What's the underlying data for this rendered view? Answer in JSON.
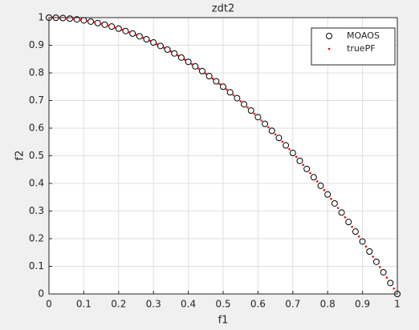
{
  "chart_data": {
    "type": "scatter",
    "title": "zdt2",
    "x_label": "f1",
    "y_label": "f2",
    "xlim": [
      0,
      1
    ],
    "ylim": [
      0,
      1
    ],
    "xticks": [
      0,
      0.1,
      0.2,
      0.3,
      0.4,
      0.5,
      0.6,
      0.7,
      0.8,
      0.9,
      1
    ],
    "yticks": [
      0,
      0.1,
      0.2,
      0.3,
      0.4,
      0.5,
      0.6,
      0.7,
      0.8,
      0.9,
      1
    ],
    "grid": true,
    "legend": "northeast",
    "series": [
      {
        "name": "MOAOS",
        "color": "#000000",
        "marker": "circle",
        "x": [
          0,
          0.02,
          0.04,
          0.06,
          0.08,
          0.1,
          0.12,
          0.14,
          0.16,
          0.18,
          0.2,
          0.22,
          0.24,
          0.26,
          0.28,
          0.3,
          0.32,
          0.34,
          0.36,
          0.38,
          0.4,
          0.42,
          0.44,
          0.46,
          0.48,
          0.5,
          0.52,
          0.54,
          0.56,
          0.58,
          0.6,
          0.62,
          0.64,
          0.66,
          0.68,
          0.7,
          0.72,
          0.74,
          0.76,
          0.78,
          0.8,
          0.82,
          0.84,
          0.86,
          0.88,
          0.9,
          0.92,
          0.94,
          0.96,
          0.98,
          1
        ],
        "values": [
          1,
          0.9996,
          0.9984,
          0.9964,
          0.9936,
          0.99,
          0.9856,
          0.9804,
          0.9744,
          0.9676,
          0.96,
          0.9516,
          0.9424,
          0.9324,
          0.9216,
          0.91,
          0.8976,
          0.8844,
          0.8704,
          0.8556,
          0.84,
          0.8236,
          0.8064,
          0.7884,
          0.7696,
          0.75,
          0.7296,
          0.7084,
          0.6864,
          0.6636,
          0.64,
          0.6156,
          0.5904,
          0.5644,
          0.5376,
          0.51,
          0.4816,
          0.4524,
          0.4224,
          0.3916,
          0.36,
          0.3276,
          0.2944,
          0.2604,
          0.2256,
          0.19,
          0.1536,
          0.1164,
          0.0784,
          0.0396,
          0
        ]
      },
      {
        "name": "truePF",
        "color": "#ff0000",
        "marker": "dot",
        "x": [
          0.01,
          0.03,
          0.05,
          0.07,
          0.09,
          0.11,
          0.13,
          0.15,
          0.17,
          0.19,
          0.21,
          0.23,
          0.25,
          0.27,
          0.29,
          0.31,
          0.33,
          0.35,
          0.37,
          0.39,
          0.41,
          0.43,
          0.45,
          0.47,
          0.49,
          0.51,
          0.53,
          0.55,
          0.57,
          0.59,
          0.61,
          0.63,
          0.65,
          0.67,
          0.69,
          0.71,
          0.73,
          0.75,
          0.77,
          0.79,
          0.81,
          0.83,
          0.85,
          0.87,
          0.89,
          0.91,
          0.93,
          0.95,
          0.97,
          0.99
        ],
        "values": [
          0.9999,
          0.9991,
          0.9975,
          0.9951,
          0.9919,
          0.9879,
          0.9831,
          0.9775,
          0.9711,
          0.9639,
          0.9559,
          0.9471,
          0.9375,
          0.9271,
          0.9159,
          0.9039,
          0.8911,
          0.8775,
          0.8631,
          0.8479,
          0.8319,
          0.8151,
          0.7975,
          0.7791,
          0.7599,
          0.7399,
          0.7191,
          0.6975,
          0.6751,
          0.6519,
          0.6279,
          0.6031,
          0.5775,
          0.5511,
          0.5239,
          0.4959,
          0.4671,
          0.4375,
          0.4071,
          0.3759,
          0.3439,
          0.3111,
          0.2775,
          0.2431,
          0.2079,
          0.1719,
          0.1351,
          0.0975,
          0.0591,
          0.0199
        ]
      }
    ]
  }
}
